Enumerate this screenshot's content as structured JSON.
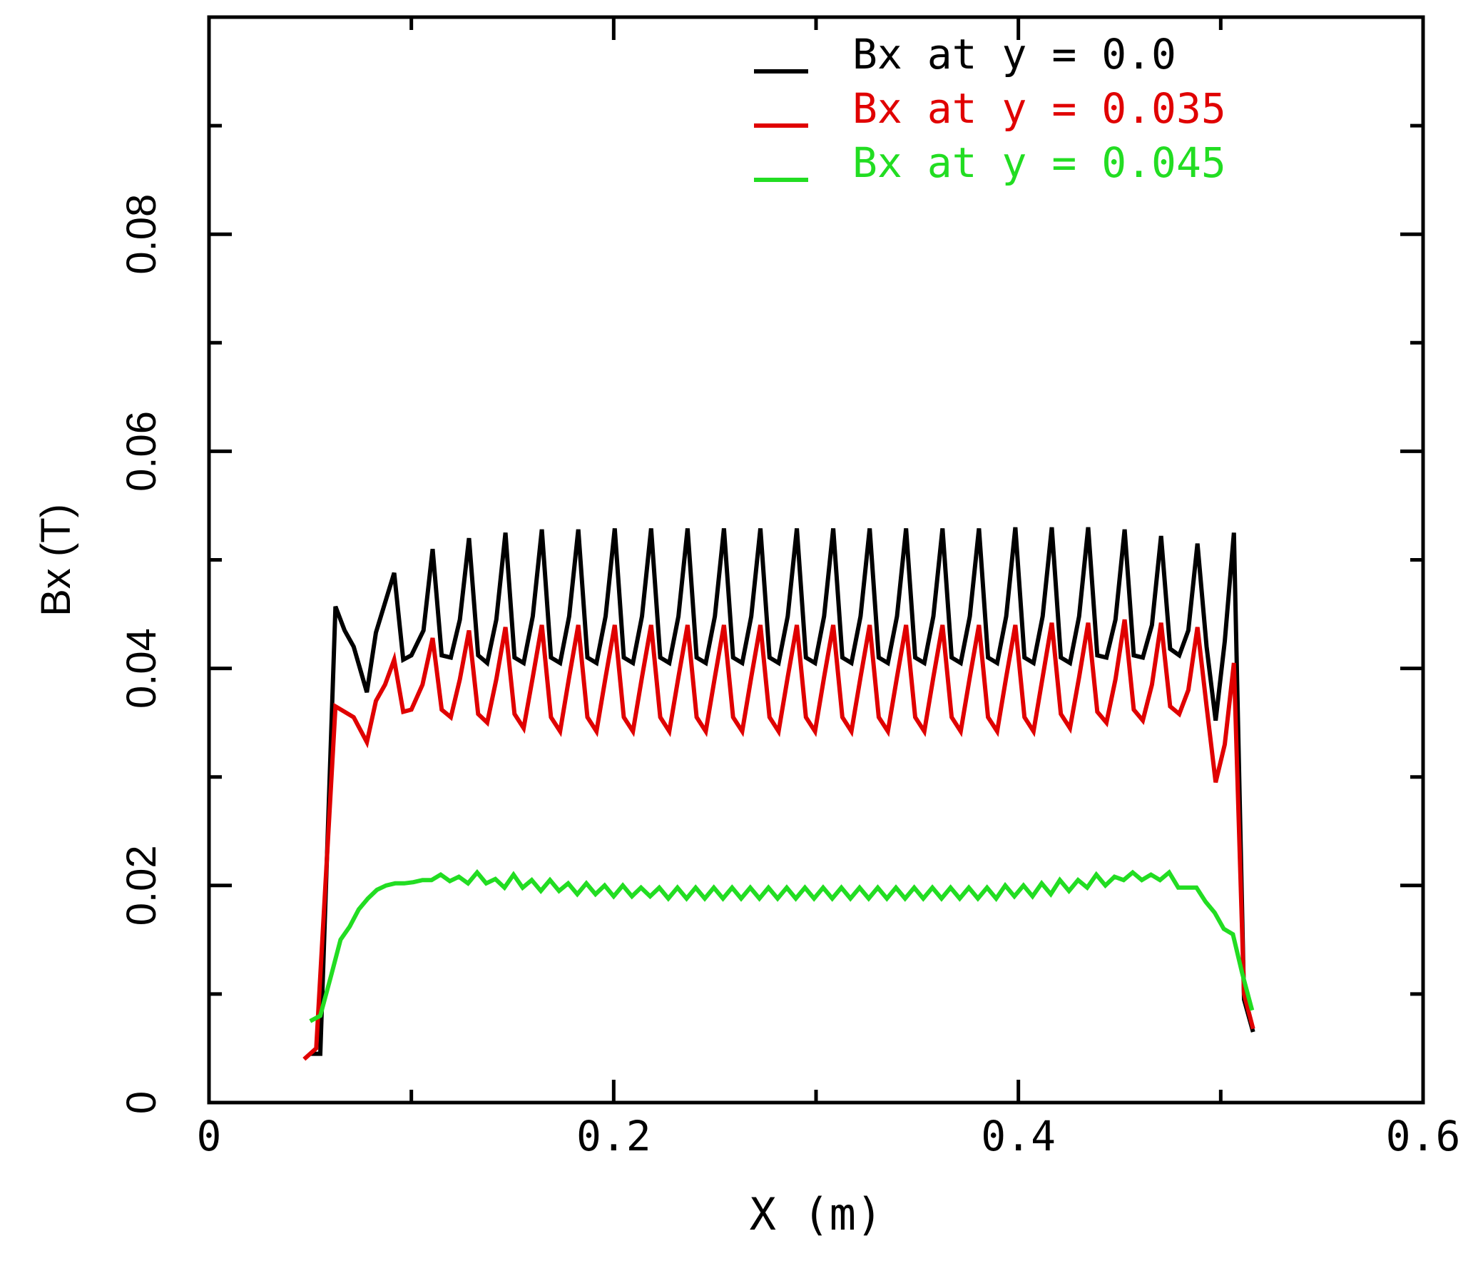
{
  "chart_data": {
    "type": "line",
    "title": "",
    "xlabel": "X (m)",
    "ylabel": "Bx (T)",
    "xlim": [
      0,
      0.6
    ],
    "ylim": [
      0,
      0.1
    ],
    "xticks": [
      {
        "value": 0,
        "label": "0"
      },
      {
        "value": 0.2,
        "label": "0.2"
      },
      {
        "value": 0.4,
        "label": "0.4"
      },
      {
        "value": 0.6,
        "label": "0.6"
      }
    ],
    "yticks": [
      {
        "value": 0,
        "label": "0"
      },
      {
        "value": 0.02,
        "label": "0.02"
      },
      {
        "value": 0.04,
        "label": "0.04"
      },
      {
        "value": 0.06,
        "label": "0.06"
      },
      {
        "value": 0.08,
        "label": "0.08"
      }
    ],
    "legend_position": "top-right",
    "grid": false,
    "series": [
      {
        "name": "Bx at y = 0.0",
        "color": "#000000",
        "x": [
          0.05,
          0.055,
          0.0625,
          0.067,
          0.0715,
          0.078,
          0.0825,
          0.0915,
          0.096,
          0.1,
          0.106,
          0.1105,
          0.115,
          0.1195,
          0.124,
          0.1285,
          0.133,
          0.1375,
          0.142,
          0.1465,
          0.151,
          0.1555,
          0.16,
          0.1645,
          0.169,
          0.1735,
          0.178,
          0.1825,
          0.187,
          0.1915,
          0.196,
          0.2005,
          0.205,
          0.2095,
          0.214,
          0.2185,
          0.223,
          0.2275,
          0.232,
          0.2365,
          0.241,
          0.2455,
          0.25,
          0.2545,
          0.259,
          0.2635,
          0.268,
          0.2725,
          0.277,
          0.2815,
          0.286,
          0.2905,
          0.295,
          0.2995,
          0.304,
          0.3085,
          0.313,
          0.3175,
          0.322,
          0.3265,
          0.331,
          0.3355,
          0.34,
          0.3445,
          0.349,
          0.3535,
          0.358,
          0.3625,
          0.367,
          0.3715,
          0.376,
          0.3805,
          0.385,
          0.3895,
          0.394,
          0.3985,
          0.403,
          0.4075,
          0.412,
          0.4165,
          0.421,
          0.4255,
          0.43,
          0.4345,
          0.439,
          0.4435,
          0.448,
          0.4525,
          0.457,
          0.4615,
          0.466,
          0.4705,
          0.475,
          0.4795,
          0.484,
          0.4885,
          0.493,
          0.4975,
          0.502,
          0.5065,
          0.5115,
          0.516
        ],
        "y": [
          0.0045,
          0.0045,
          0.0457,
          0.0435,
          0.042,
          0.0378,
          0.0433,
          0.0488,
          0.0408,
          0.0412,
          0.0435,
          0.051,
          0.0412,
          0.041,
          0.0445,
          0.052,
          0.0412,
          0.0405,
          0.0445,
          0.0525,
          0.041,
          0.0405,
          0.0448,
          0.0528,
          0.041,
          0.0405,
          0.0448,
          0.0528,
          0.041,
          0.0405,
          0.0448,
          0.0529,
          0.041,
          0.0405,
          0.0448,
          0.0529,
          0.041,
          0.0405,
          0.0448,
          0.0529,
          0.041,
          0.0405,
          0.0448,
          0.0529,
          0.041,
          0.0405,
          0.0448,
          0.0529,
          0.041,
          0.0405,
          0.0448,
          0.0529,
          0.041,
          0.0405,
          0.0448,
          0.0529,
          0.041,
          0.0405,
          0.0448,
          0.0529,
          0.041,
          0.0405,
          0.0448,
          0.0529,
          0.041,
          0.0405,
          0.0448,
          0.0529,
          0.041,
          0.0405,
          0.0448,
          0.0529,
          0.041,
          0.0405,
          0.0448,
          0.053,
          0.041,
          0.0405,
          0.0448,
          0.053,
          0.041,
          0.0405,
          0.0448,
          0.053,
          0.0412,
          0.041,
          0.0445,
          0.0528,
          0.0412,
          0.041,
          0.044,
          0.0522,
          0.0418,
          0.0412,
          0.0435,
          0.0515,
          0.042,
          0.0352,
          0.0425,
          0.0525,
          0.0095,
          0.0065
        ]
      },
      {
        "name": "Bx at y = 0.035",
        "color": "#e00000",
        "x": [
          0.047,
          0.053,
          0.0625,
          0.067,
          0.0715,
          0.078,
          0.0825,
          0.087,
          0.0915,
          0.096,
          0.1,
          0.1055,
          0.1105,
          0.115,
          0.1195,
          0.124,
          0.1285,
          0.133,
          0.1375,
          0.142,
          0.1465,
          0.151,
          0.1555,
          0.16,
          0.1645,
          0.169,
          0.1735,
          0.178,
          0.1825,
          0.187,
          0.1915,
          0.196,
          0.2005,
          0.205,
          0.2095,
          0.214,
          0.2185,
          0.223,
          0.2275,
          0.232,
          0.2365,
          0.241,
          0.2455,
          0.25,
          0.2545,
          0.259,
          0.2635,
          0.268,
          0.2725,
          0.277,
          0.2815,
          0.286,
          0.2905,
          0.295,
          0.2995,
          0.304,
          0.3085,
          0.313,
          0.3175,
          0.322,
          0.3265,
          0.331,
          0.3355,
          0.34,
          0.3445,
          0.349,
          0.3535,
          0.358,
          0.3625,
          0.367,
          0.3715,
          0.376,
          0.3805,
          0.385,
          0.3895,
          0.394,
          0.3985,
          0.403,
          0.4075,
          0.412,
          0.4165,
          0.421,
          0.4255,
          0.43,
          0.4345,
          0.439,
          0.4435,
          0.448,
          0.4525,
          0.457,
          0.4615,
          0.466,
          0.4705,
          0.475,
          0.4795,
          0.484,
          0.4885,
          0.493,
          0.4975,
          0.502,
          0.5065,
          0.5115,
          0.516
        ],
        "y": [
          0.004,
          0.005,
          0.0365,
          0.036,
          0.0355,
          0.0332,
          0.037,
          0.0385,
          0.0408,
          0.036,
          0.0362,
          0.0385,
          0.0428,
          0.0362,
          0.0355,
          0.039,
          0.0435,
          0.0358,
          0.035,
          0.039,
          0.0438,
          0.0358,
          0.0345,
          0.0392,
          0.044,
          0.0355,
          0.0342,
          0.0392,
          0.044,
          0.0355,
          0.0342,
          0.0392,
          0.044,
          0.0355,
          0.0342,
          0.0392,
          0.044,
          0.0355,
          0.0342,
          0.0392,
          0.044,
          0.0355,
          0.0342,
          0.0392,
          0.044,
          0.0355,
          0.0342,
          0.0392,
          0.044,
          0.0355,
          0.0342,
          0.0392,
          0.044,
          0.0355,
          0.0342,
          0.0392,
          0.044,
          0.0355,
          0.0342,
          0.0392,
          0.044,
          0.0355,
          0.0342,
          0.0392,
          0.044,
          0.0355,
          0.0342,
          0.0392,
          0.044,
          0.0355,
          0.0342,
          0.0392,
          0.044,
          0.0355,
          0.0342,
          0.0392,
          0.044,
          0.0355,
          0.0342,
          0.0392,
          0.0442,
          0.0358,
          0.0345,
          0.0392,
          0.0442,
          0.036,
          0.035,
          0.039,
          0.0445,
          0.0362,
          0.0352,
          0.0385,
          0.0442,
          0.0365,
          0.0358,
          0.038,
          0.0438,
          0.0365,
          0.0295,
          0.033,
          0.0405,
          0.01,
          0.0068
        ]
      },
      {
        "name": "Bx at y = 0.045",
        "color": "#22dd22",
        "x": [
          0.05,
          0.055,
          0.0605,
          0.065,
          0.0695,
          0.074,
          0.0785,
          0.083,
          0.0875,
          0.092,
          0.0965,
          0.101,
          0.1055,
          0.11,
          0.1145,
          0.119,
          0.1235,
          0.128,
          0.1325,
          0.137,
          0.1415,
          0.146,
          0.1505,
          0.155,
          0.1595,
          0.164,
          0.1685,
          0.173,
          0.1775,
          0.182,
          0.1865,
          0.191,
          0.1955,
          0.2,
          0.2045,
          0.209,
          0.2135,
          0.218,
          0.2225,
          0.227,
          0.2315,
          0.236,
          0.2405,
          0.245,
          0.2495,
          0.254,
          0.2585,
          0.263,
          0.2675,
          0.272,
          0.2765,
          0.281,
          0.2855,
          0.29,
          0.2945,
          0.299,
          0.3035,
          0.308,
          0.3125,
          0.317,
          0.3215,
          0.326,
          0.3305,
          0.335,
          0.3395,
          0.344,
          0.3485,
          0.353,
          0.3575,
          0.362,
          0.3665,
          0.371,
          0.3755,
          0.38,
          0.3845,
          0.389,
          0.3935,
          0.398,
          0.4025,
          0.407,
          0.4115,
          0.416,
          0.4205,
          0.425,
          0.4295,
          0.434,
          0.4385,
          0.443,
          0.4475,
          0.452,
          0.4565,
          0.461,
          0.4655,
          0.47,
          0.4745,
          0.479,
          0.4835,
          0.488,
          0.4925,
          0.497,
          0.5015,
          0.506,
          0.5105,
          0.5155
        ],
        "y": [
          0.0075,
          0.008,
          0.0118,
          0.015,
          0.0162,
          0.0178,
          0.0188,
          0.0196,
          0.02,
          0.0202,
          0.0202,
          0.0203,
          0.0205,
          0.0205,
          0.021,
          0.0204,
          0.0208,
          0.0202,
          0.0212,
          0.0202,
          0.0206,
          0.0198,
          0.021,
          0.0198,
          0.0205,
          0.0195,
          0.0205,
          0.0195,
          0.0202,
          0.0192,
          0.0202,
          0.0192,
          0.02,
          0.019,
          0.02,
          0.019,
          0.0198,
          0.019,
          0.0198,
          0.0188,
          0.0198,
          0.0188,
          0.0198,
          0.0188,
          0.0198,
          0.0188,
          0.0198,
          0.0188,
          0.0198,
          0.0188,
          0.0198,
          0.0188,
          0.0198,
          0.0188,
          0.0198,
          0.0188,
          0.0198,
          0.0188,
          0.0198,
          0.0188,
          0.0198,
          0.0188,
          0.0198,
          0.0188,
          0.0198,
          0.0188,
          0.0198,
          0.0188,
          0.0198,
          0.0188,
          0.0198,
          0.0188,
          0.0198,
          0.0188,
          0.0198,
          0.0188,
          0.02,
          0.019,
          0.02,
          0.019,
          0.0202,
          0.0192,
          0.0205,
          0.0195,
          0.0205,
          0.0198,
          0.021,
          0.02,
          0.0208,
          0.0205,
          0.0212,
          0.0205,
          0.021,
          0.0205,
          0.0212,
          0.0198,
          0.0198,
          0.0198,
          0.0185,
          0.0175,
          0.016,
          0.0155,
          0.012,
          0.0085
        ]
      }
    ]
  }
}
